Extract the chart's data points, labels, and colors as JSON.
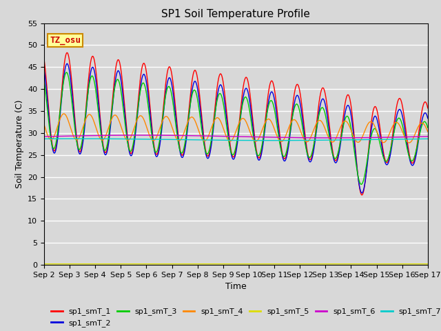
{
  "title": "SP1 Soil Temperature Profile",
  "xlabel": "Time",
  "ylabel": "Soil Temperature (C)",
  "ylim": [
    0,
    55
  ],
  "yticks": [
    0,
    5,
    10,
    15,
    20,
    25,
    30,
    35,
    40,
    45,
    50,
    55
  ],
  "xtick_labels": [
    "Sep 2",
    "Sep 3",
    "Sep 4",
    "Sep 5",
    "Sep 6",
    "Sep 7",
    "Sep 8",
    "Sep 9",
    "Sep 10",
    "Sep 11",
    "Sep 12",
    "Sep 13",
    "Sep 14",
    "Sep 15",
    "Sep 16",
    "Sep 17"
  ],
  "series_colors": {
    "sp1_smT_1": "#ff0000",
    "sp1_smT_2": "#0000dd",
    "sp1_smT_3": "#00cc00",
    "sp1_smT_4": "#ff8800",
    "sp1_smT_5": "#dddd00",
    "sp1_smT_6": "#cc00cc",
    "sp1_smT_7": "#00cccc"
  },
  "annotation_text": "TZ_osu",
  "annotation_bg": "#ffff99",
  "annotation_border": "#cc8800",
  "fig_facecolor": "#d8d8d8",
  "plot_bg": "#d8d8d8",
  "grid_color": "#ffffff",
  "title_fontsize": 11,
  "axis_fontsize": 9,
  "tick_fontsize": 8,
  "legend_fontsize": 8
}
